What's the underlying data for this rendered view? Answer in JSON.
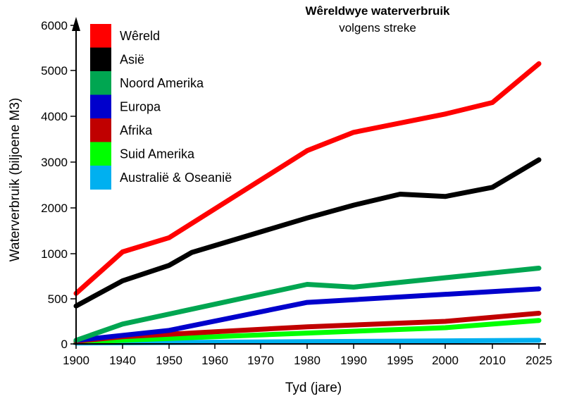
{
  "chart_data": {
    "type": "line",
    "title": "Wêreldwye waterverbruik",
    "subtitle": "volgens streke",
    "xlabel": "Tyd (jare)",
    "ylabel": "Waterverbruik (biljoene M3)",
    "x_ticks": [
      "1900",
      "1940",
      "1950",
      "1960",
      "1970",
      "1980",
      "1990",
      "1995",
      "2000",
      "2010",
      "2025"
    ],
    "y_ticks": [
      "0",
      "500",
      "1000",
      "2000",
      "3000",
      "4000",
      "5000",
      "6000"
    ],
    "legend_position": "top-left",
    "grid": false,
    "series": [
      {
        "name": "Wêreld",
        "color": "#ff0000",
        "points": [
          [
            "1900",
            560
          ],
          [
            "1940",
            1040
          ],
          [
            "1950",
            1350
          ],
          [
            "1980",
            3250
          ],
          [
            "1990",
            3650
          ],
          [
            "2000",
            4050
          ],
          [
            "2010",
            4300
          ],
          [
            "2025",
            5150
          ]
        ]
      },
      {
        "name": "Asië",
        "color": "#000000",
        "points": [
          [
            "1900",
            420
          ],
          [
            "1940",
            700
          ],
          [
            "1950",
            870
          ],
          [
            "1955",
            1030
          ],
          [
            "1980",
            1780
          ],
          [
            "1990",
            2060
          ],
          [
            "1995",
            2300
          ],
          [
            "2000",
            2250
          ],
          [
            "2010",
            2450
          ],
          [
            "2025",
            3050
          ]
        ]
      },
      {
        "name": "Noord Amerika",
        "color": "#00a651",
        "points": [
          [
            "1900",
            40
          ],
          [
            "1940",
            220
          ],
          [
            "1980",
            660
          ],
          [
            "1990",
            630
          ],
          [
            "2025",
            840
          ]
        ]
      },
      {
        "name": "Europa",
        "color": "#0000cc",
        "points": [
          [
            "1900",
            40
          ],
          [
            "1950",
            150
          ],
          [
            "1980",
            460
          ],
          [
            "2025",
            610
          ]
        ]
      },
      {
        "name": "Afrika",
        "color": "#c00000",
        "points": [
          [
            "1900",
            30
          ],
          [
            "1940",
            80
          ],
          [
            "1980",
            190
          ],
          [
            "2000",
            250
          ],
          [
            "2025",
            340
          ]
        ]
      },
      {
        "name": "Suid Amerika",
        "color": "#00ff00",
        "points": [
          [
            "1900",
            20
          ],
          [
            "1980",
            120
          ],
          [
            "2000",
            180
          ],
          [
            "2025",
            260
          ]
        ]
      },
      {
        "name": "Australië & Oseanië",
        "color": "#00b0f0",
        "points": [
          [
            "1900",
            10
          ],
          [
            "1980",
            25
          ],
          [
            "2025",
            40
          ]
        ]
      }
    ]
  }
}
